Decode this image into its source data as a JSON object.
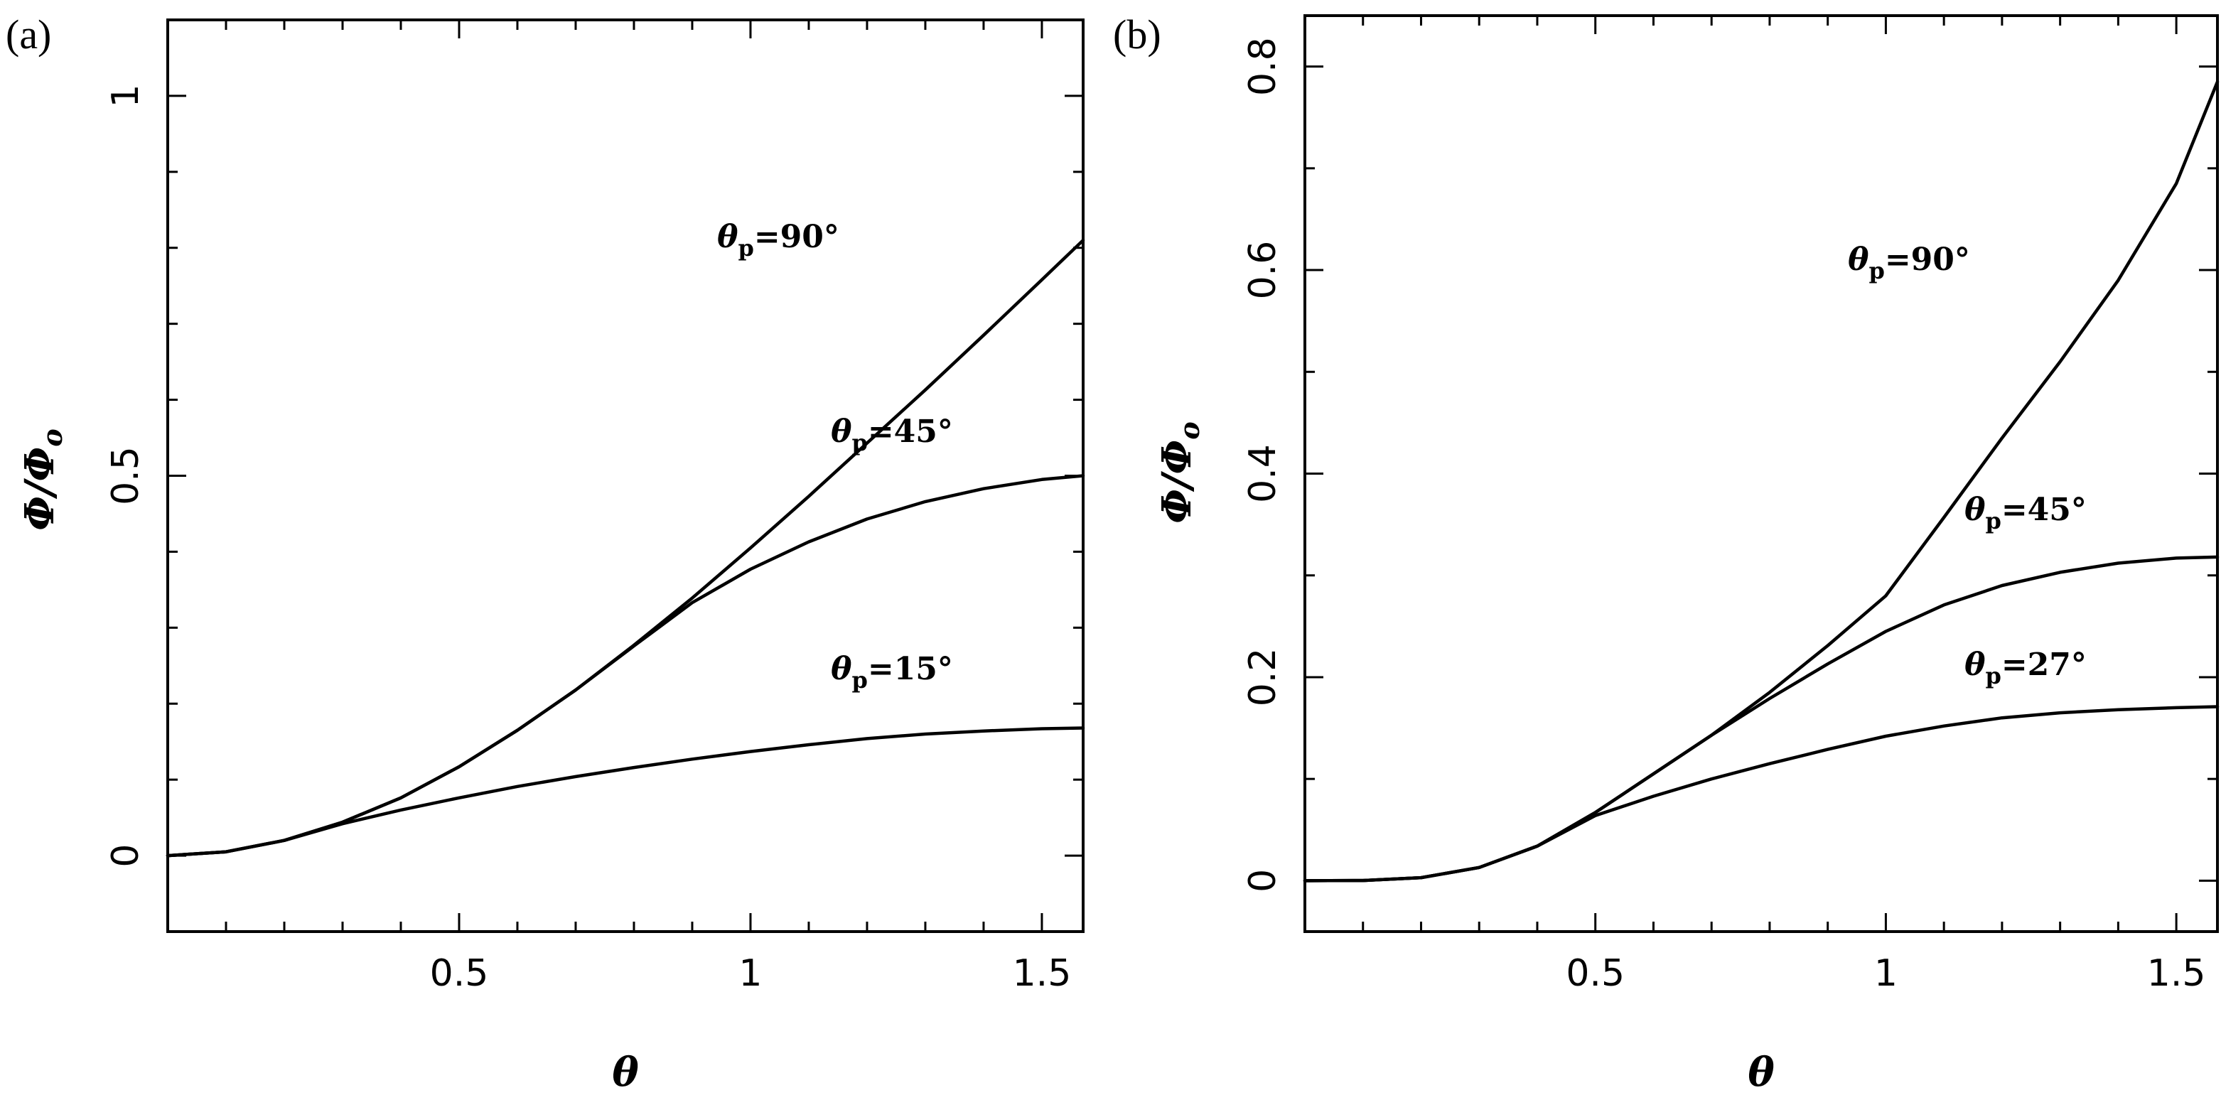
{
  "chart_data": [
    {
      "type": "line",
      "panel_label": "(a)",
      "xlabel": "θ",
      "ylabel": "Φ/Φ",
      "ylabel_sub": "o",
      "xlim": [
        0,
        1.5708
      ],
      "ylim": [
        -0.1,
        1.1
      ],
      "x_ticks": [
        0.5,
        1,
        1.5
      ],
      "x_tick_labels": [
        "0.5",
        "1",
        "1.5"
      ],
      "y_ticks": [
        0,
        0.5,
        1
      ],
      "y_tick_labels": [
        "0",
        "0.5",
        "1"
      ],
      "series": [
        {
          "label_prefix": "θ",
          "label_sub": "p",
          "label_value": "=90°",
          "x": [
            0,
            0.1,
            0.2,
            0.3,
            0.4,
            0.5,
            0.6,
            0.7,
            0.8,
            0.9,
            1.0,
            1.1,
            1.2,
            1.3,
            1.4,
            1.5,
            1.5708
          ],
          "y": [
            0,
            0.005,
            0.02,
            0.044,
            0.076,
            0.117,
            0.165,
            0.218,
            0.277,
            0.339,
            0.405,
            0.473,
            0.543,
            0.613,
            0.685,
            0.758,
            0.81
          ]
        },
        {
          "label_prefix": "θ",
          "label_sub": "p",
          "label_value": "=45°",
          "x": [
            0,
            0.1,
            0.2,
            0.3,
            0.4,
            0.5,
            0.6,
            0.7,
            0.8,
            0.9,
            1.0,
            1.1,
            1.2,
            1.3,
            1.4,
            1.5,
            1.5708
          ],
          "y": [
            0,
            0.005,
            0.02,
            0.044,
            0.076,
            0.117,
            0.165,
            0.218,
            0.276,
            0.333,
            0.377,
            0.413,
            0.443,
            0.466,
            0.483,
            0.495,
            0.5
          ]
        },
        {
          "label_prefix": "θ",
          "label_sub": "p",
          "label_value": "=15°",
          "x": [
            0,
            0.1,
            0.2,
            0.3,
            0.4,
            0.5,
            0.6,
            0.7,
            0.8,
            0.9,
            1.0,
            1.1,
            1.2,
            1.3,
            1.4,
            1.5,
            1.5708
          ],
          "y": [
            0,
            0.005,
            0.02,
            0.042,
            0.06,
            0.076,
            0.091,
            0.104,
            0.116,
            0.127,
            0.137,
            0.146,
            0.154,
            0.16,
            0.164,
            0.167,
            0.168
          ]
        }
      ]
    },
    {
      "type": "line",
      "panel_label": "(b)",
      "xlabel": "θ",
      "ylabel": "Φ/Φ",
      "ylabel_sub": "o",
      "xlim": [
        0,
        1.5708
      ],
      "ylim": [
        -0.05,
        0.85
      ],
      "x_ticks": [
        0.5,
        1,
        1.5
      ],
      "x_tick_labels": [
        "0.5",
        "1",
        "1.5"
      ],
      "y_ticks": [
        0,
        0.2,
        0.4,
        0.6,
        0.8
      ],
      "y_tick_labels": [
        "0",
        "0.2",
        "0.4",
        "0.6",
        "0.8"
      ],
      "series": [
        {
          "label_prefix": "θ",
          "label_sub": "p",
          "label_value": "=90°",
          "x": [
            0,
            0.1,
            0.2,
            0.3,
            0.4,
            0.5,
            0.6,
            0.7,
            0.8,
            0.9,
            1.0,
            1.1,
            1.2,
            1.3,
            1.4,
            1.5,
            1.5708
          ],
          "y": [
            0,
            0.0002,
            0.003,
            0.013,
            0.034,
            0.067,
            0.105,
            0.143,
            0.185,
            0.231,
            0.28,
            0.357,
            0.435,
            0.51,
            0.59,
            0.685,
            0.785
          ]
        },
        {
          "label_prefix": "θ",
          "label_sub": "p",
          "label_value": "=45°",
          "x": [
            0,
            0.1,
            0.2,
            0.3,
            0.4,
            0.5,
            0.6,
            0.7,
            0.8,
            0.9,
            1.0,
            1.1,
            1.2,
            1.3,
            1.4,
            1.5,
            1.5708
          ],
          "y": [
            0,
            0.0002,
            0.003,
            0.013,
            0.034,
            0.067,
            0.105,
            0.143,
            0.179,
            0.213,
            0.245,
            0.271,
            0.29,
            0.303,
            0.312,
            0.317,
            0.318
          ]
        },
        {
          "label_prefix": "θ",
          "label_sub": "p",
          "label_value": "=27°",
          "x": [
            0,
            0.1,
            0.2,
            0.3,
            0.4,
            0.5,
            0.6,
            0.7,
            0.8,
            0.9,
            1.0,
            1.1,
            1.2,
            1.3,
            1.4,
            1.5,
            1.5708
          ],
          "y": [
            0,
            0.0002,
            0.003,
            0.013,
            0.034,
            0.064,
            0.083,
            0.1,
            0.115,
            0.129,
            0.142,
            0.152,
            0.16,
            0.165,
            0.168,
            0.17,
            0.171
          ]
        }
      ]
    }
  ]
}
